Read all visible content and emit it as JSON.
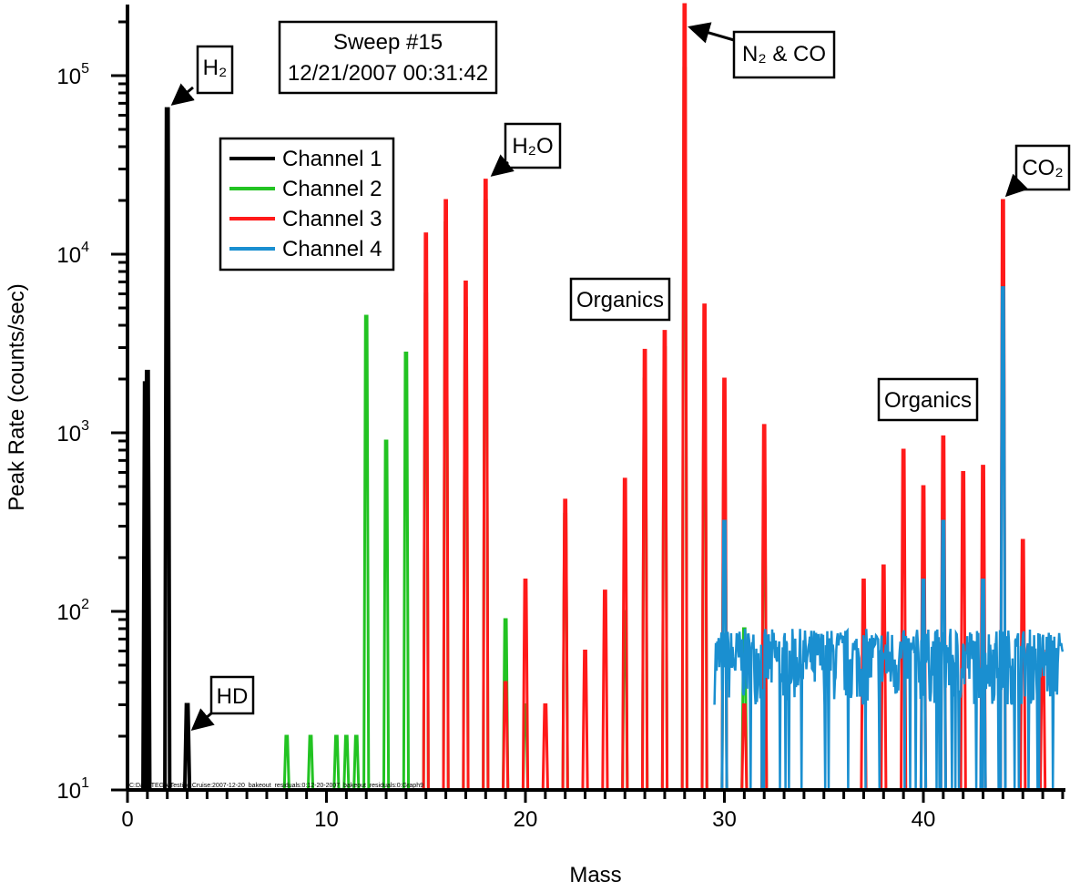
{
  "chart_data": {
    "type": "line",
    "title": "Sweep #15",
    "subtitle": "12/21/2007 00:31:42",
    "xlabel": "Mass",
    "ylabel": "Peak Rate (counts/sec)",
    "xlim": [
      0,
      47.1
    ],
    "ylim": [
      10,
      250000
    ],
    "yscale": "log",
    "xticks": [
      0,
      10,
      20,
      30,
      40
    ],
    "xtick_labels": [
      "0",
      "10",
      "20",
      "30",
      "40"
    ],
    "yticks": [
      {
        "base": "10",
        "exp": "1"
      },
      {
        "base": "10",
        "exp": "2"
      },
      {
        "base": "10",
        "exp": "3"
      },
      {
        "base": "10",
        "exp": "4"
      },
      {
        "base": "10",
        "exp": "5"
      }
    ],
    "legend_position": "top-left",
    "series": [
      {
        "name": "Channel 1",
        "color": "#000000",
        "peaks": [
          [
            0.9,
            1900
          ],
          [
            1.0,
            2200
          ],
          [
            2.0,
            65000
          ],
          [
            3.0,
            30
          ]
        ]
      },
      {
        "name": "Channel 2",
        "color": "#22c322",
        "peaks": [
          [
            8,
            20
          ],
          [
            9.2,
            20
          ],
          [
            10.5,
            20
          ],
          [
            11,
            20
          ],
          [
            11.5,
            20
          ],
          [
            12,
            4500
          ],
          [
            13,
            900
          ],
          [
            14,
            2800
          ],
          [
            15,
            6000
          ],
          [
            16,
            15000
          ],
          [
            17,
            5000
          ],
          [
            18,
            20000
          ],
          [
            19,
            90
          ],
          [
            20,
            30
          ],
          [
            22,
            350
          ],
          [
            25,
            100
          ],
          [
            26,
            2000
          ],
          [
            27,
            3000
          ],
          [
            28,
            110000
          ],
          [
            29,
            2500
          ],
          [
            30,
            1000
          ],
          [
            31,
            80
          ],
          [
            32,
            500
          ]
        ]
      },
      {
        "name": "Channel 3",
        "color": "#ff1a1a",
        "peaks": [
          [
            15,
            13000
          ],
          [
            16,
            20000
          ],
          [
            17,
            7000
          ],
          [
            18,
            26000
          ],
          [
            19,
            40
          ],
          [
            20,
            150
          ],
          [
            21,
            30
          ],
          [
            22,
            420
          ],
          [
            23,
            60
          ],
          [
            24,
            130
          ],
          [
            25,
            550
          ],
          [
            26,
            2900
          ],
          [
            27,
            3700
          ],
          [
            28,
            250000
          ],
          [
            29,
            5200
          ],
          [
            30,
            2000
          ],
          [
            31,
            30
          ],
          [
            32,
            1100
          ],
          [
            37,
            150
          ],
          [
            38,
            180
          ],
          [
            39,
            800
          ],
          [
            40,
            500
          ],
          [
            41,
            950
          ],
          [
            42,
            600
          ],
          [
            43,
            650
          ],
          [
            44,
            20000
          ],
          [
            45,
            250
          ],
          [
            46,
            60
          ]
        ]
      },
      {
        "name": "Channel 4",
        "color": "#1a8fd0",
        "peaks": [
          [
            30,
            320
          ],
          [
            40,
            150
          ],
          [
            41,
            320
          ],
          [
            43,
            150
          ],
          [
            44,
            6500
          ]
        ],
        "noise_range": [
          30,
          80
        ],
        "noise_x": [
          29.5,
          47
        ]
      }
    ],
    "annotations": {
      "h2": "H₂",
      "hd": "HD",
      "h2o": "H₂O",
      "n2co": "N₂ & CO",
      "co2": "CO₂",
      "organics1": "Organics",
      "organics2": "Organics"
    },
    "file_path": "C:Data:TEGA:Testing:Cruise:2007-12-20_bakeout_residuals:0:12-20-2007_bakeout_residuals:0:Graph9"
  }
}
